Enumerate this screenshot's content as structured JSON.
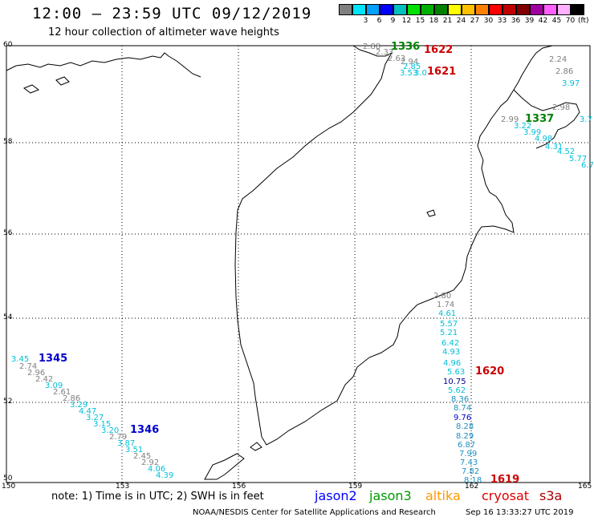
{
  "header": {
    "title": "12:00 – 23:59 UTC 09/12/2019",
    "subtitle": "12 hour collection of altimeter wave heights"
  },
  "legend": {
    "unit": "(ft)",
    "swatches": [
      {
        "color": "#808080",
        "label": ""
      },
      {
        "color": "#00e5ff",
        "label": "3"
      },
      {
        "color": "#00a0ff",
        "label": "6"
      },
      {
        "color": "#0000ff",
        "label": "9"
      },
      {
        "color": "#00c0c0",
        "label": "12"
      },
      {
        "color": "#00e000",
        "label": "15"
      },
      {
        "color": "#00b000",
        "label": "18"
      },
      {
        "color": "#008000",
        "label": "21"
      },
      {
        "color": "#ffff00",
        "label": "24"
      },
      {
        "color": "#ffc000",
        "label": "27"
      },
      {
        "color": "#ff8000",
        "label": "30"
      },
      {
        "color": "#ff0000",
        "label": "33"
      },
      {
        "color": "#c00000",
        "label": "36"
      },
      {
        "color": "#800000",
        "label": "39"
      },
      {
        "color": "#a000a0",
        "label": "42"
      },
      {
        "color": "#ff60ff",
        "label": "45"
      },
      {
        "color": "#ffb0ff",
        "label": "70"
      },
      {
        "color": "#000000",
        "label": ""
      }
    ]
  },
  "axes": {
    "lon_labels": [
      "150",
      "153",
      "156",
      "159",
      "162",
      "165"
    ],
    "lat_labels": [
      "60",
      "58",
      "56",
      "54",
      "52",
      "50"
    ]
  },
  "track_labels": [
    {
      "text": "1336",
      "color": "#008000",
      "bold": true
    },
    {
      "text": "1622",
      "color": "#cc0000",
      "bold": true
    },
    {
      "text": "1621",
      "color": "#cc0000",
      "bold": true
    },
    {
      "text": "1337",
      "color": "#008000",
      "bold": true
    },
    {
      "text": "1345",
      "color": "#0000cc",
      "bold": true
    },
    {
      "text": "1346",
      "color": "#0000cc",
      "bold": true
    },
    {
      "text": "1620",
      "color": "#cc0000",
      "bold": true
    },
    {
      "text": "1619",
      "color": "#cc0000",
      "bold": true
    }
  ],
  "swh_values": [
    {
      "text": "2.88",
      "color": "#808080"
    },
    {
      "text": "2.33",
      "color": "#808080"
    },
    {
      "text": "2.63",
      "color": "#808080"
    },
    {
      "text": "2.94",
      "color": "#808080"
    },
    {
      "text": "2.85",
      "color": "#00bfd8"
    },
    {
      "text": "3.53",
      "color": "#00bfd8"
    },
    {
      "text": "3.0",
      "color": "#00bfd8"
    },
    {
      "text": "2.24",
      "color": "#808080"
    },
    {
      "text": "2.86",
      "color": "#808080"
    },
    {
      "text": "3.97",
      "color": "#00bfd8"
    },
    {
      "text": "2.98",
      "color": "#808080"
    },
    {
      "text": "3.7",
      "color": "#00bfd8"
    },
    {
      "text": "2.99",
      "color": "#808080"
    },
    {
      "text": "3.22",
      "color": "#00bfd8"
    },
    {
      "text": "3.99",
      "color": "#00bfd8"
    },
    {
      "text": "4.98",
      "color": "#00bfd8"
    },
    {
      "text": "4.31",
      "color": "#00bfd8"
    },
    {
      "text": "4.52",
      "color": "#00bfd8"
    },
    {
      "text": "5.77",
      "color": "#00bfd8"
    },
    {
      "text": "6.7",
      "color": "#00bfd8"
    },
    {
      "text": "3.45",
      "color": "#00bfd8"
    },
    {
      "text": "2.74",
      "color": "#808080"
    },
    {
      "text": "2.96",
      "color": "#808080"
    },
    {
      "text": "2.42",
      "color": "#808080"
    },
    {
      "text": "3.09",
      "color": "#00bfd8"
    },
    {
      "text": "2.61",
      "color": "#808080"
    },
    {
      "text": "2.86",
      "color": "#808080"
    },
    {
      "text": "3.29",
      "color": "#00bfd8"
    },
    {
      "text": "4.47",
      "color": "#00bfd8"
    },
    {
      "text": "3.27",
      "color": "#00bfd8"
    },
    {
      "text": "3.15",
      "color": "#00bfd8"
    },
    {
      "text": "3.20",
      "color": "#00bfd8"
    },
    {
      "text": "2.79",
      "color": "#808080"
    },
    {
      "text": "3.87",
      "color": "#00bfd8"
    },
    {
      "text": "3.51",
      "color": "#00bfd8"
    },
    {
      "text": "2.45",
      "color": "#808080"
    },
    {
      "text": "2.92",
      "color": "#808080"
    },
    {
      "text": "4.06",
      "color": "#00bfd8"
    },
    {
      "text": "4.39",
      "color": "#00bfd8"
    },
    {
      "text": "2.80",
      "color": "#808080"
    },
    {
      "text": "1.74",
      "color": "#808080"
    },
    {
      "text": "4.61",
      "color": "#00bfd8"
    },
    {
      "text": "5.57",
      "color": "#00bfd8"
    },
    {
      "text": "5.21",
      "color": "#00bfd8"
    },
    {
      "text": "6.42",
      "color": "#00bfd8"
    },
    {
      "text": "4.93",
      "color": "#00bfd8"
    },
    {
      "text": "4.96",
      "color": "#00bfd8"
    },
    {
      "text": "5.63",
      "color": "#00bfd8"
    },
    {
      "text": "10.75",
      "color": "#00008b"
    },
    {
      "text": "5.62",
      "color": "#00bfd8"
    },
    {
      "text": "8.36",
      "color": "#1e90c0"
    },
    {
      "text": "8.74",
      "color": "#1e90c0"
    },
    {
      "text": "9.76",
      "color": "#0000cc"
    },
    {
      "text": "8.28",
      "color": "#1e90c0"
    },
    {
      "text": "8.29",
      "color": "#1e90c0"
    },
    {
      "text": "6.87",
      "color": "#1e90c0"
    },
    {
      "text": "7.99",
      "color": "#1e90c0"
    },
    {
      "text": "7.43",
      "color": "#1e90c0"
    },
    {
      "text": "7.82",
      "color": "#1e90c0"
    },
    {
      "text": "8.18",
      "color": "#1e90c0"
    }
  ],
  "footer": {
    "note": "note:  1) Time is in UTC;  2) SWH is in feet",
    "satellites": [
      {
        "name": "jason2",
        "color": "#0000ff"
      },
      {
        "name": "jason3",
        "color": "#009900"
      },
      {
        "name": "altika",
        "color": "#ff9900"
      },
      {
        "name": "cryosat",
        "color": "#dd0000"
      },
      {
        "name": "s3a",
        "color": "#aa0000"
      }
    ],
    "credit": "NOAA/NESDIS Center for Satellite Applications and Research",
    "timestamp": "Sep 16 13:33:27 UTC 2019"
  }
}
